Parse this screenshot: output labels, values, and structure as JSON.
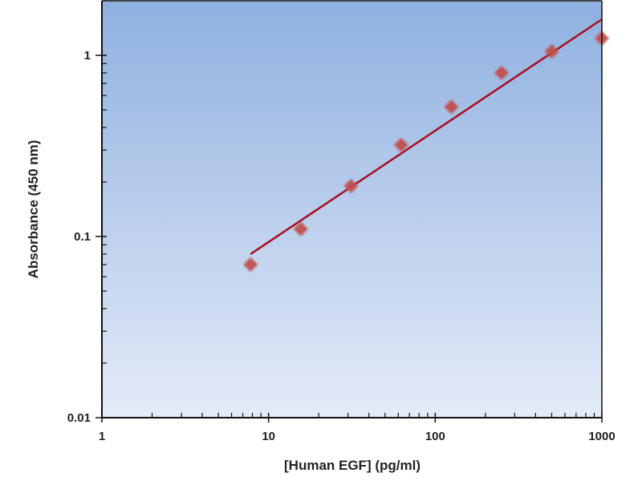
{
  "chart_data": {
    "type": "scatter",
    "title": "",
    "xlabel": "[Human EGF] (pg/ml)",
    "ylabel": "Absorbance (450 nm)",
    "x_scale": "log",
    "y_scale": "log",
    "xlim": [
      1,
      1000
    ],
    "ylim": [
      0.01,
      2
    ],
    "x_ticks": [
      {
        "v": 1,
        "label": "1"
      },
      {
        "v": 10,
        "label": "10"
      },
      {
        "v": 100,
        "label": "100"
      },
      {
        "v": 1000,
        "label": "1000"
      }
    ],
    "y_ticks": [
      {
        "v": 0.01,
        "label": "0.01"
      },
      {
        "v": 0.1,
        "label": "0.1"
      },
      {
        "v": 1,
        "label": "1"
      }
    ],
    "grid": false,
    "series": [
      {
        "type": "scatter",
        "marker": "diamond",
        "color": "#c0504d",
        "x": [
          7.8,
          15.6,
          31.25,
          62.5,
          125,
          250,
          500,
          1000
        ],
        "y": [
          0.07,
          0.11,
          0.19,
          0.32,
          0.52,
          0.8,
          1.05,
          1.24
        ]
      }
    ],
    "fit_line": {
      "type": "power",
      "color": "#a50f1e",
      "x": [
        7.8,
        1000
      ],
      "y": [
        0.08,
        1.58
      ]
    },
    "background_gradient": [
      "#8fb0e0",
      "#e4ebf8"
    ]
  }
}
